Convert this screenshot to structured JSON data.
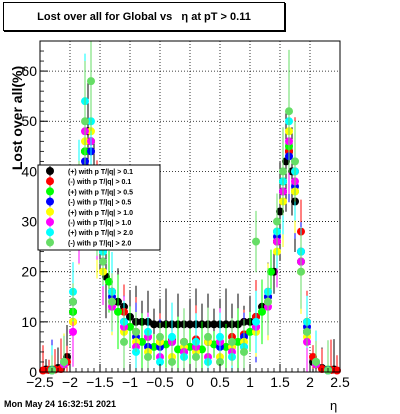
{
  "canvas": {
    "title": "Lost over all for Global vs   η at pT > 0.11",
    "timestamp": "Mon May 24 16:32:51 2021"
  },
  "chart_data": {
    "type": "scatter",
    "title": "Lost over all for Global vs   η at pT > 0.11",
    "xlabel": "η",
    "ylabel": "Lost over all(%)",
    "xlim": [
      -2.5,
      2.5
    ],
    "ylim": [
      0,
      66
    ],
    "x_ticks": [
      -2.5,
      -2,
      -1.5,
      -1,
      -0.5,
      0,
      0.5,
      1,
      1.5,
      2,
      2.5
    ],
    "x_tick_labels": [
      "−2.5",
      "−2",
      "−1.5",
      "−1",
      "−0.5",
      "0",
      "0.5",
      "1",
      "1.5",
      "2",
      "2.5"
    ],
    "y_ticks": [
      0,
      10,
      20,
      30,
      40,
      50,
      60
    ],
    "y_tick_labels": [
      "0",
      "10",
      "20",
      "30",
      "40",
      "50",
      "60"
    ],
    "grid": true,
    "legend_position": "left-middle",
    "series": [
      {
        "name": "(+) with p T/|q| > 0.1",
        "color": "#000000",
        "x": [
          -2.4,
          -2.2,
          -2.05,
          -1.95,
          -1.85,
          -1.75,
          -1.7,
          -1.65,
          -1.6,
          -1.55,
          -1.5,
          -1.45,
          -1.4,
          -1.3,
          -1.2,
          -1.1,
          -1.0,
          -0.9,
          -0.8,
          -0.7,
          -0.6,
          -0.5,
          -0.4,
          -0.3,
          -0.2,
          -0.1,
          0.0,
          0.1,
          0.2,
          0.3,
          0.4,
          0.5,
          0.6,
          0.7,
          0.8,
          0.9,
          1.0,
          1.1,
          1.2,
          1.3,
          1.4,
          1.45,
          1.5,
          1.55,
          1.6,
          1.65,
          1.7,
          1.75,
          1.85,
          1.95,
          2.05,
          2.2,
          2.4
        ],
        "y": [
          0.5,
          0.8,
          3,
          12,
          34,
          44,
          48,
          46,
          38,
          30,
          25,
          22,
          19,
          16,
          14,
          13,
          11,
          10,
          10,
          10,
          9.5,
          9.5,
          9.5,
          9.5,
          9.5,
          9.5,
          9.5,
          9.5,
          9.5,
          9.5,
          9.5,
          9.5,
          9.5,
          9.5,
          9.5,
          10,
          10,
          11,
          13,
          15,
          20,
          26,
          32,
          38,
          42,
          44,
          40,
          34,
          22,
          8,
          2,
          0.8,
          0.5
        ]
      },
      {
        "name": "(-) with p T/|q| > 0.1",
        "color": "#ff0000",
        "x": [
          -2.45,
          -2.35,
          -2.25,
          -2.15,
          -2.05,
          -1.95,
          -1.85,
          -1.75,
          -1.65,
          -1.55,
          -1.45,
          -1.3,
          -1.1,
          -0.9,
          -0.7,
          -0.5,
          -0.3,
          -0.1,
          0.1,
          0.3,
          0.5,
          0.7,
          0.9,
          1.1,
          1.3,
          1.45,
          1.55,
          1.65,
          1.75,
          1.85,
          1.95,
          2.05,
          2.2,
          2.35,
          2.45
        ],
        "y": [
          0.3,
          0.4,
          0.5,
          0.6,
          2,
          10,
          30,
          40,
          44,
          35,
          26,
          16,
          12,
          8,
          7,
          6,
          6.5,
          6,
          6.5,
          6,
          6,
          7,
          7.5,
          11,
          16,
          26,
          36,
          44,
          40,
          28,
          10,
          3,
          0.6,
          0.4,
          0.3
        ]
      },
      {
        "name": "(+) with p T/|q| > 0.5",
        "color": "#00ff00",
        "x": [
          -2.3,
          -2.1,
          -1.95,
          -1.85,
          -1.75,
          -1.65,
          -1.55,
          -1.45,
          -1.35,
          -1.2,
          -1.0,
          -0.8,
          -0.6,
          -0.4,
          -0.2,
          0.0,
          0.2,
          0.4,
          0.6,
          0.8,
          1.0,
          1.2,
          1.35,
          1.45,
          1.55,
          1.65,
          1.75,
          1.85,
          1.95,
          2.1,
          2.3
        ],
        "y": [
          0.5,
          2,
          12,
          32,
          44,
          46,
          32,
          24,
          18,
          12,
          9,
          6,
          5,
          5.5,
          4.5,
          5,
          4.5,
          5.5,
          5,
          6,
          8,
          12,
          20,
          28,
          38,
          45,
          36,
          22,
          8,
          2,
          0.5
        ]
      },
      {
        "name": "(-) with p T/|q| > 0.5",
        "color": "#0000ff",
        "x": [
          -2.3,
          -2.1,
          -1.95,
          -1.85,
          -1.75,
          -1.65,
          -1.55,
          -1.45,
          -1.3,
          -1.1,
          -0.9,
          -0.7,
          -0.5,
          -0.3,
          -0.1,
          0.1,
          0.3,
          0.5,
          0.7,
          0.9,
          1.1,
          1.3,
          1.45,
          1.55,
          1.65,
          1.75,
          1.85,
          1.95,
          2.1,
          2.3
        ],
        "y": [
          0.4,
          1.5,
          14,
          34,
          42,
          44,
          30,
          22,
          15,
          10,
          7,
          5,
          5,
          6,
          4,
          5,
          6,
          5,
          5,
          7,
          9,
          15,
          27,
          36,
          43,
          37,
          24,
          9,
          1.5,
          0.4
        ]
      },
      {
        "name": "(+) with p T/|q| > 1.0",
        "color": "#ffff00",
        "x": [
          -2.3,
          -2.1,
          -1.95,
          -1.85,
          -1.75,
          -1.65,
          -1.55,
          -1.45,
          -1.3,
          -1.1,
          -0.9,
          -0.7,
          -0.5,
          -0.3,
          -0.1,
          0.1,
          0.3,
          0.5,
          0.7,
          0.9,
          1.1,
          1.3,
          1.45,
          1.55,
          1.65,
          1.75,
          1.85,
          1.95,
          2.1,
          2.3
        ],
        "y": [
          0.3,
          1.5,
          10,
          30,
          46,
          48,
          28,
          20,
          14,
          8,
          6,
          4,
          6,
          3,
          5,
          4,
          6,
          3,
          5,
          6,
          8,
          14,
          24,
          34,
          48,
          36,
          20,
          7,
          1.5,
          0.3
        ]
      },
      {
        "name": "(-) with p T/|q| > 1.0",
        "color": "#ff00ff",
        "x": [
          -2.3,
          -2.1,
          -1.95,
          -1.85,
          -1.75,
          -1.65,
          -1.55,
          -1.45,
          -1.3,
          -1.1,
          -0.9,
          -0.7,
          -0.5,
          -0.3,
          -0.1,
          0.1,
          0.3,
          0.5,
          0.7,
          0.9,
          1.1,
          1.3,
          1.45,
          1.55,
          1.65,
          1.75,
          1.85,
          1.95,
          2.1,
          2.3
        ],
        "y": [
          0.3,
          1.5,
          8,
          28,
          48,
          46,
          30,
          22,
          13,
          9,
          5,
          7,
          3,
          6,
          4,
          5,
          3,
          6,
          4,
          5,
          9,
          13,
          26,
          36,
          46,
          38,
          22,
          6,
          1.5,
          0.3
        ]
      },
      {
        "name": "(+) with p T/|q| > 2.0",
        "color": "#00ffff",
        "x": [
          -2.3,
          -2.1,
          -1.95,
          -1.85,
          -1.75,
          -1.65,
          -1.55,
          -1.45,
          -1.3,
          -1.1,
          -0.9,
          -0.7,
          -0.5,
          -0.3,
          -0.1,
          0.1,
          0.3,
          0.5,
          0.7,
          0.9,
          1.1,
          1.3,
          1.45,
          1.55,
          1.65,
          1.75,
          1.85,
          1.95,
          2.1,
          2.3
        ],
        "y": [
          0.3,
          2,
          16,
          36,
          54,
          50,
          34,
          24,
          16,
          10,
          4,
          8,
          2,
          7,
          3,
          6,
          2,
          7,
          3,
          5,
          10,
          16,
          28,
          38,
          50,
          40,
          24,
          10,
          2,
          0.3
        ]
      },
      {
        "name": "(-) with p T/|q| > 2.0",
        "color": "#66dd66",
        "x": [
          -2.3,
          -2.1,
          -1.95,
          -1.85,
          -1.75,
          -1.65,
          -1.55,
          -1.45,
          -1.3,
          -1.1,
          -0.9,
          -0.7,
          -0.5,
          -0.3,
          -0.1,
          0.1,
          0.3,
          0.5,
          0.7,
          0.9,
          1.1,
          1.3,
          1.45,
          1.55,
          1.65,
          1.75,
          1.85,
          1.95,
          2.1,
          2.3
        ],
        "y": [
          0.3,
          2,
          14,
          34,
          50,
          58,
          32,
          22,
          14,
          6,
          8,
          3,
          7,
          2,
          6,
          3,
          7,
          2,
          6,
          4,
          26,
          14,
          30,
          40,
          52,
          42,
          20,
          8,
          2,
          0.3
        ]
      }
    ]
  }
}
